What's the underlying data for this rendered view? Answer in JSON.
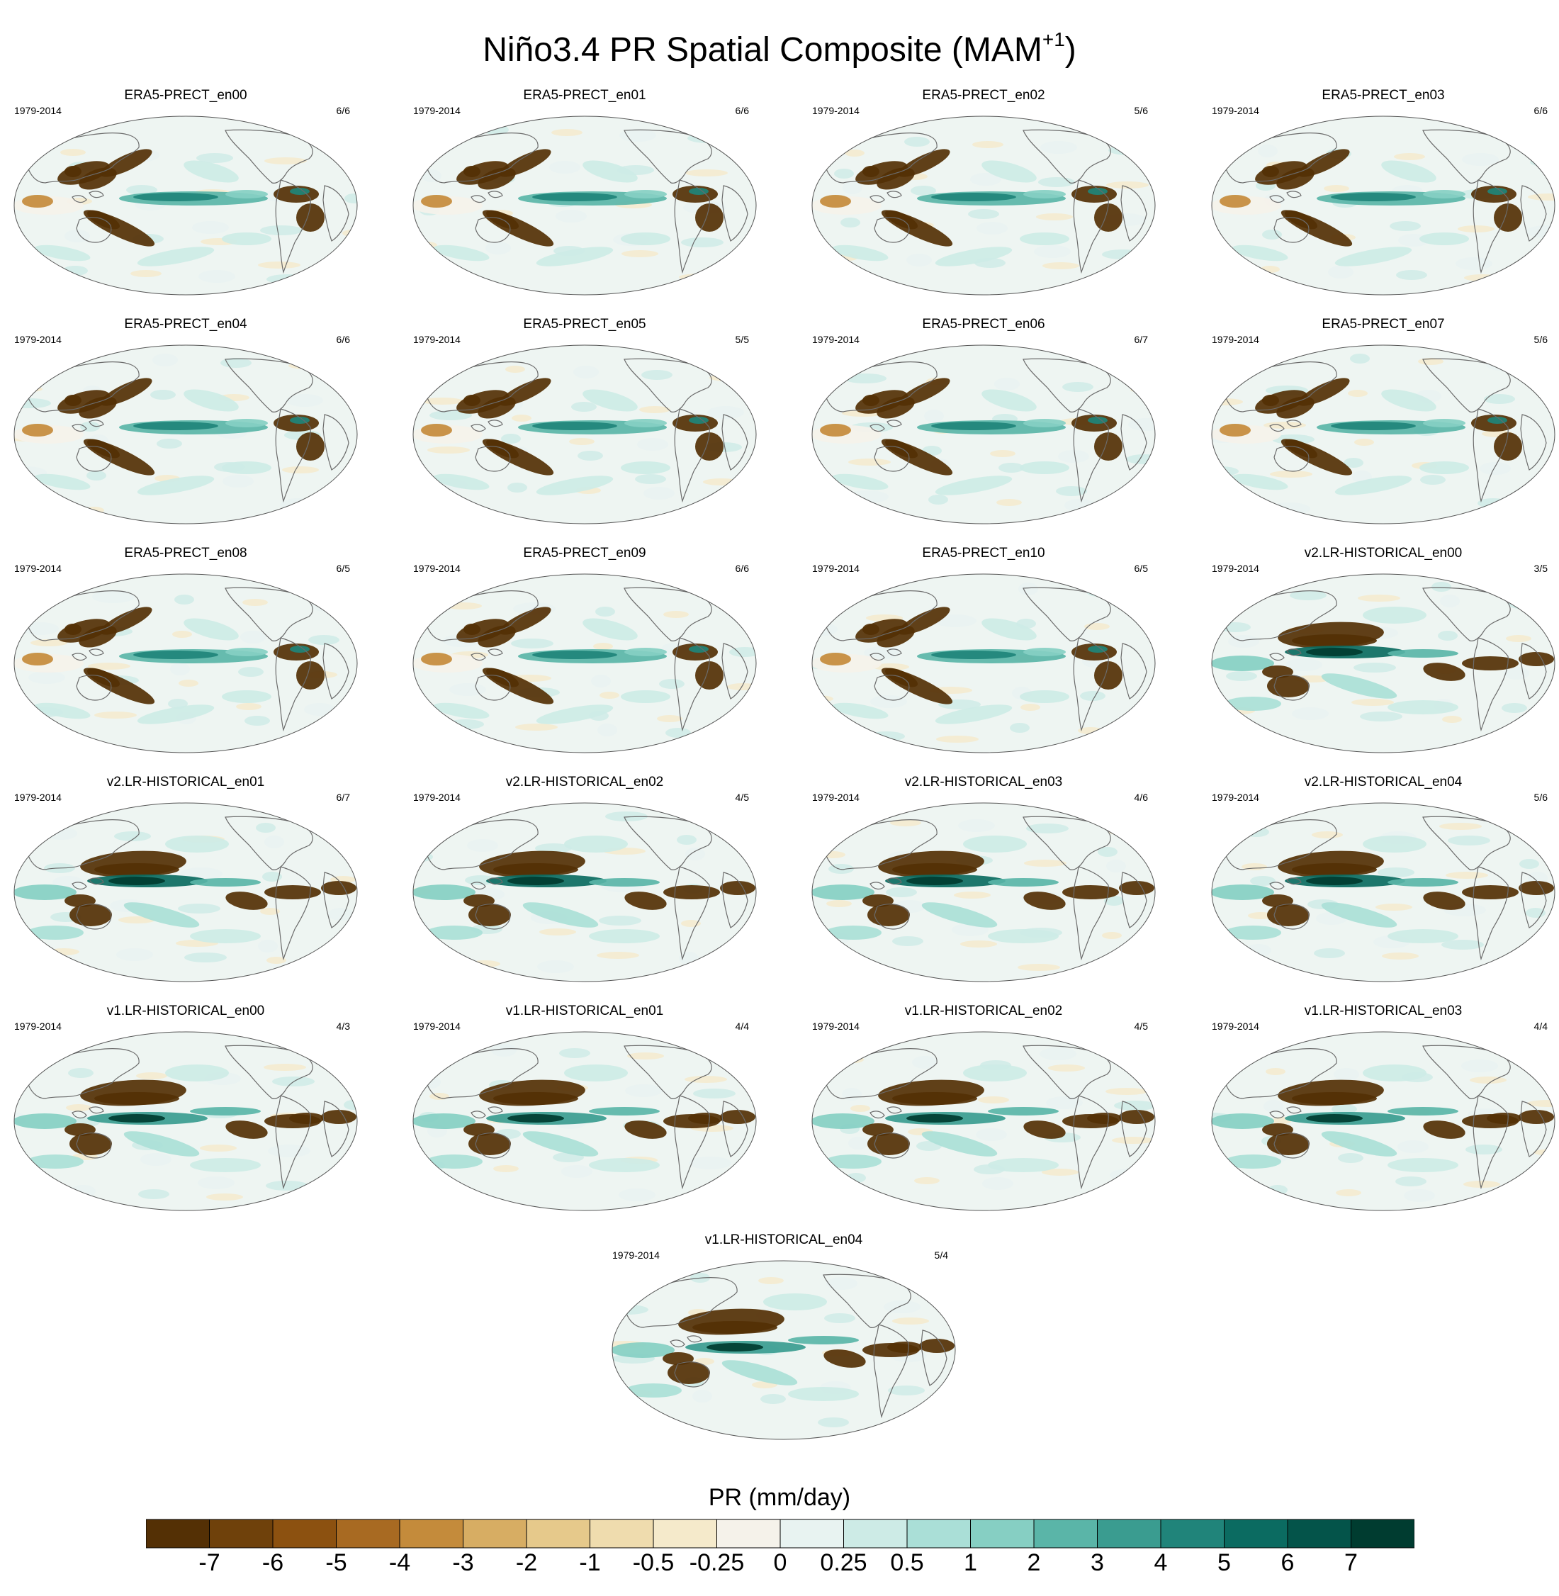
{
  "title": "Niño3.4 PR Spatial Composite (MAM",
  "title_sup": "+1",
  "title_tail": ")",
  "chart_data": {
    "type": "heatmap",
    "projection": "robinson",
    "season": "MAM+1",
    "colorbar": {
      "label": "PR (mm/day)",
      "ticks": [
        "-7",
        "-6",
        "-5",
        "-4",
        "-3",
        "-2",
        "-1",
        "-0.5",
        "-0.25",
        "0",
        "0.25",
        "0.5",
        "1",
        "2",
        "3",
        "4",
        "5",
        "6",
        "7"
      ],
      "colors": [
        "#543005",
        "#6f410b",
        "#8c5110",
        "#a86a22",
        "#c48b3b",
        "#d7ad63",
        "#e6c98b",
        "#efdcae",
        "#f5eacb",
        "#f5f2ea",
        "#e8f3f1",
        "#cdebe6",
        "#aadfd7",
        "#86cfc3",
        "#5ab5a8",
        "#3a9c90",
        "#20847a",
        "#0b6b61",
        "#04544a",
        "#003c30"
      ]
    },
    "panels": [
      {
        "title": "ERA5-PRECT_en00",
        "period": "1979-2014",
        "count": "6/6",
        "type": "obs"
      },
      {
        "title": "ERA5-PRECT_en01",
        "period": "1979-2014",
        "count": "6/6",
        "type": "obs"
      },
      {
        "title": "ERA5-PRECT_en02",
        "period": "1979-2014",
        "count": "5/6",
        "type": "obs"
      },
      {
        "title": "ERA5-PRECT_en03",
        "period": "1979-2014",
        "count": "6/6",
        "type": "obs"
      },
      {
        "title": "ERA5-PRECT_en04",
        "period": "1979-2014",
        "count": "6/6",
        "type": "obs"
      },
      {
        "title": "ERA5-PRECT_en05",
        "period": "1979-2014",
        "count": "5/5",
        "type": "obs"
      },
      {
        "title": "ERA5-PRECT_en06",
        "period": "1979-2014",
        "count": "6/7",
        "type": "obs"
      },
      {
        "title": "ERA5-PRECT_en07",
        "period": "1979-2014",
        "count": "5/6",
        "type": "obs"
      },
      {
        "title": "ERA5-PRECT_en08",
        "period": "1979-2014",
        "count": "6/5",
        "type": "obs"
      },
      {
        "title": "ERA5-PRECT_en09",
        "period": "1979-2014",
        "count": "6/6",
        "type": "obs"
      },
      {
        "title": "ERA5-PRECT_en10",
        "period": "1979-2014",
        "count": "6/5",
        "type": "obs"
      },
      {
        "title": "v2.LR-HISTORICAL_en00",
        "period": "1979-2014",
        "count": "3/5",
        "type": "model"
      },
      {
        "title": "v2.LR-HISTORICAL_en01",
        "period": "1979-2014",
        "count": "6/7",
        "type": "model"
      },
      {
        "title": "v2.LR-HISTORICAL_en02",
        "period": "1979-2014",
        "count": "4/5",
        "type": "model"
      },
      {
        "title": "v2.LR-HISTORICAL_en03",
        "period": "1979-2014",
        "count": "4/6",
        "type": "model"
      },
      {
        "title": "v2.LR-HISTORICAL_en04",
        "period": "1979-2014",
        "count": "5/6",
        "type": "model"
      },
      {
        "title": "v1.LR-HISTORICAL_en00",
        "period": "1979-2014",
        "count": "4/3",
        "type": "model"
      },
      {
        "title": "v1.LR-HISTORICAL_en01",
        "period": "1979-2014",
        "count": "4/4",
        "type": "model"
      },
      {
        "title": "v1.LR-HISTORICAL_en02",
        "period": "1979-2014",
        "count": "4/5",
        "type": "model"
      },
      {
        "title": "v1.LR-HISTORICAL_en03",
        "period": "1979-2014",
        "count": "4/4",
        "type": "model"
      },
      {
        "title": "v1.LR-HISTORICAL_en04",
        "period": "1979-2014",
        "count": "5/4",
        "type": "model"
      }
    ]
  }
}
